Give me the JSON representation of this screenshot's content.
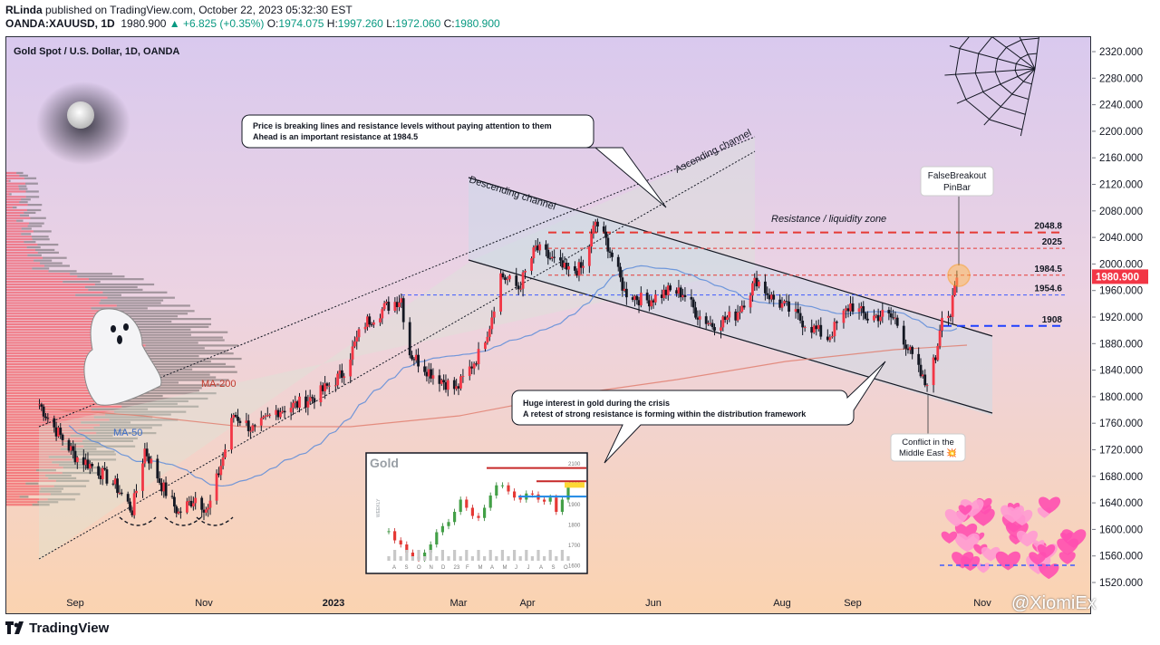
{
  "header": {
    "author": "RLinda",
    "published_text": " published on TradingView.com, October 22, 2023 05:32:30 EST",
    "symbol": "OANDA:XAUUSD, 1D",
    "last": "1980.900",
    "change": "▲ +6.825 (+0.35%)",
    "o_label": "O:",
    "o_val": "1974.075",
    "h_label": "H:",
    "h_val": "1997.260",
    "l_label": "L:",
    "l_val": "1972.060",
    "c_label": "C:",
    "c_val": "1980.900"
  },
  "footer": {
    "brand": "TradingView",
    "watermark": "@XiomiEx"
  },
  "colors": {
    "up": "#089981",
    "down": "#f23645",
    "candle": "#131722",
    "ma50": "#5b8bd9",
    "ma200": "#e07b6a",
    "resistance": "#e53935",
    "support": "#1e40ff"
  },
  "chart_data": [
    {
      "type": "candlestick",
      "title": "Gold Spot / U.S. Dollar, 1D, OANDA",
      "x_ticks": [
        "Sep",
        "Nov",
        "2023",
        "Mar",
        "Apr",
        "Jun",
        "Aug",
        "Sep",
        "Nov"
      ],
      "y_ticks": [
        "2320.000",
        "2280.000",
        "2240.000",
        "2200.000",
        "2160.000",
        "2120.000",
        "2080.000",
        "2040.000",
        "2000.000",
        "1960.000",
        "1920.000",
        "1880.000",
        "1840.000",
        "1800.000",
        "1760.000",
        "1720.000",
        "1680.000",
        "1640.000",
        "1600.000",
        "1560.000",
        "1520.000"
      ],
      "ylim": [
        1510,
        2340
      ],
      "last_price_label": "1980.900",
      "series": [
        {
          "name": "MA-50",
          "type": "line"
        },
        {
          "name": "MA-200",
          "type": "line"
        }
      ],
      "levels": [
        {
          "label": "2048.8",
          "value": 2048.8,
          "style": "resistance"
        },
        {
          "label": "2025",
          "value": 2025,
          "style": "minor"
        },
        {
          "label": "1984.5",
          "value": 1984.5,
          "style": "minor"
        },
        {
          "label": "1954.6",
          "value": 1954.6,
          "style": "minor-blue"
        },
        {
          "label": "1908",
          "value": 1908,
          "style": "support"
        }
      ],
      "close_path": [
        [
          "2022-08-15",
          1790
        ],
        [
          "2022-08-22",
          1755
        ],
        [
          "2022-09-01",
          1712
        ],
        [
          "2022-09-10",
          1695
        ],
        [
          "2022-09-20",
          1668
        ],
        [
          "2022-09-28",
          1630
        ],
        [
          "2022-10-04",
          1722
        ],
        [
          "2022-10-12",
          1668
        ],
        [
          "2022-10-20",
          1626
        ],
        [
          "2022-10-28",
          1650
        ],
        [
          "2022-11-03",
          1630
        ],
        [
          "2022-11-10",
          1710
        ],
        [
          "2022-11-15",
          1775
        ],
        [
          "2022-11-25",
          1750
        ],
        [
          "2022-12-05",
          1780
        ],
        [
          "2022-12-15",
          1790
        ],
        [
          "2022-12-25",
          1805
        ],
        [
          "2023-01-05",
          1835
        ],
        [
          "2023-01-15",
          1910
        ],
        [
          "2023-01-25",
          1935
        ],
        [
          "2023-02-02",
          1950
        ],
        [
          "2023-02-05",
          1870
        ],
        [
          "2023-02-15",
          1840
        ],
        [
          "2023-02-28",
          1812
        ],
        [
          "2023-03-10",
          1865
        ],
        [
          "2023-03-15",
          1910
        ],
        [
          "2023-03-20",
          1985
        ],
        [
          "2023-03-28",
          1965
        ],
        [
          "2023-04-05",
          2025
        ],
        [
          "2023-04-12",
          2010
        ],
        [
          "2023-04-20",
          1990
        ],
        [
          "2023-04-28",
          1995
        ],
        [
          "2023-05-04",
          2065
        ],
        [
          "2023-05-10",
          2030
        ],
        [
          "2023-05-18",
          1960
        ],
        [
          "2023-05-28",
          1945
        ],
        [
          "2023-06-08",
          1960
        ],
        [
          "2023-06-15",
          1958
        ],
        [
          "2023-06-22",
          1925
        ],
        [
          "2023-06-29",
          1910
        ],
        [
          "2023-07-10",
          1925
        ],
        [
          "2023-07-20",
          1978
        ],
        [
          "2023-07-27",
          1950
        ],
        [
          "2023-08-03",
          1935
        ],
        [
          "2023-08-10",
          1915
        ],
        [
          "2023-08-21",
          1890
        ],
        [
          "2023-08-31",
          1940
        ],
        [
          "2023-09-08",
          1920
        ],
        [
          "2023-09-15",
          1925
        ],
        [
          "2023-09-21",
          1918
        ],
        [
          "2023-09-29",
          1860
        ],
        [
          "2023-10-05",
          1820
        ],
        [
          "2023-10-10",
          1860
        ],
        [
          "2023-10-13",
          1930
        ],
        [
          "2023-10-17",
          1925
        ],
        [
          "2023-10-20",
          1980.9
        ]
      ],
      "annotations": [
        {
          "name": "channel-label-ascending",
          "text": "Ascending channel"
        },
        {
          "name": "channel-label-descending",
          "text": "Descending channel"
        },
        {
          "name": "zone-label",
          "text": "Resistance / liquidity zone"
        },
        {
          "name": "ma200-label",
          "text": "MA-200"
        },
        {
          "name": "ma50-label",
          "text": "MA-50"
        },
        {
          "name": "callout-top",
          "lines": [
            "Price is breaking lines and resistance levels without paying attention to them",
            "Ahead is an important resistance at 1984.5"
          ]
        },
        {
          "name": "callout-mid",
          "lines": [
            "Huge interest in gold during the crisis",
            "A retest of strong resistance is forming within the distribution framework"
          ]
        },
        {
          "name": "pinbar-note",
          "lines": [
            "FalseBreakout",
            "PinBar"
          ]
        },
        {
          "name": "conflict-note",
          "lines": [
            "Conflict in the",
            "Middle East 💥"
          ]
        }
      ]
    },
    {
      "type": "candlestick",
      "title": "Gold",
      "x_ticks": [
        "A",
        "S",
        "O",
        "N",
        "D",
        "23",
        "F",
        "M",
        "A",
        "M",
        "J",
        "J",
        "A",
        "S",
        "O"
      ],
      "y_ticks": [
        "2100",
        "2000",
        "1900",
        "1800",
        "1700",
        "1600"
      ],
      "ylim": [
        1570,
        2130
      ],
      "y_axis_label": "WEEKLY",
      "close_path": [
        [
          0,
          1765
        ],
        [
          1,
          1720
        ],
        [
          2,
          1700
        ],
        [
          3,
          1660
        ],
        [
          4,
          1640
        ],
        [
          5,
          1630
        ],
        [
          6,
          1660
        ],
        [
          7,
          1700
        ],
        [
          8,
          1760
        ],
        [
          9,
          1790
        ],
        [
          10,
          1810
        ],
        [
          11,
          1860
        ],
        [
          12,
          1920
        ],
        [
          13,
          1880
        ],
        [
          14,
          1840
        ],
        [
          15,
          1830
        ],
        [
          16,
          1880
        ],
        [
          17,
          1940
        ],
        [
          18,
          1990
        ],
        [
          19,
          1990
        ],
        [
          20,
          1960
        ],
        [
          21,
          1930
        ],
        [
          22,
          1920
        ],
        [
          23,
          1950
        ],
        [
          24,
          1945
        ],
        [
          25,
          1920
        ],
        [
          26,
          1910
        ],
        [
          27,
          1930
        ],
        [
          28,
          1860
        ],
        [
          29,
          1920
        ],
        [
          30,
          1980
        ]
      ]
    }
  ]
}
